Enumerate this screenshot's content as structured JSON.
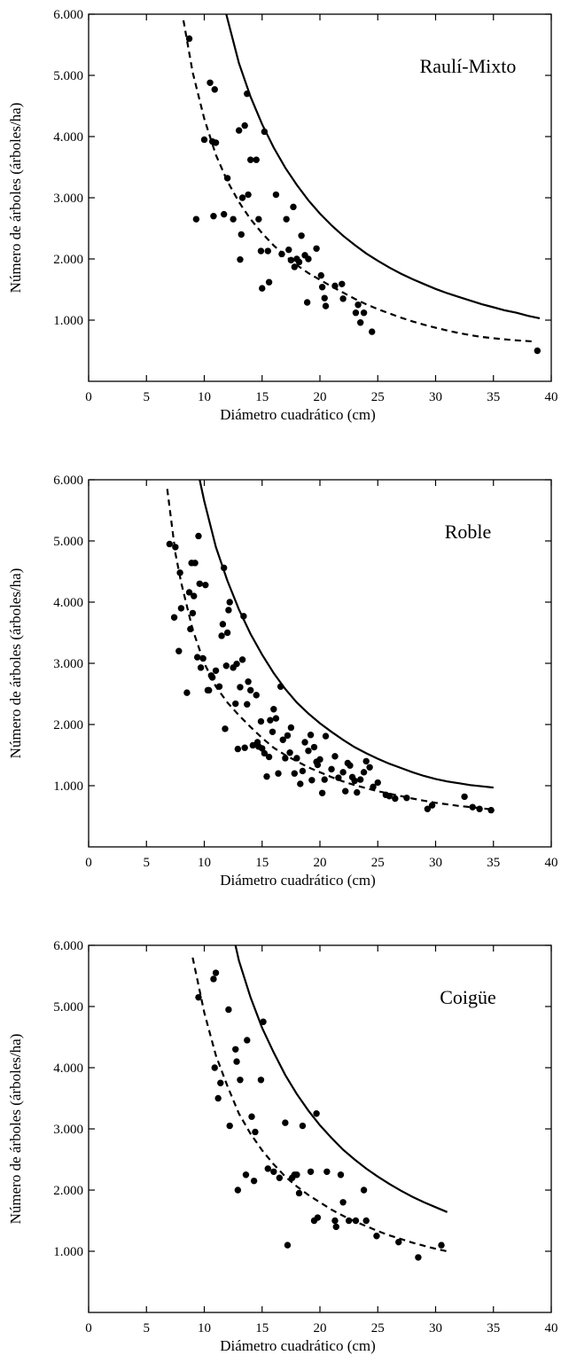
{
  "chart_data": [
    {
      "type": "scatter",
      "title": "Raulí-Mixto",
      "xlabel": "Diámetro cuadrático (cm)",
      "ylabel": "Número de árboles (árboles/ha)",
      "xlim": [
        0,
        40
      ],
      "ylim": [
        0,
        6000
      ],
      "xticks": [
        0,
        5,
        10,
        15,
        20,
        25,
        30,
        35,
        40
      ],
      "xtick_labels": [
        "0",
        "5",
        "10",
        "15",
        "20",
        "25",
        "30",
        "35",
        "40"
      ],
      "yticks": [
        1000,
        2000,
        3000,
        4000,
        5000,
        6000
      ],
      "ytick_labels": [
        "1.000",
        "2.000",
        "3.000",
        "4.000",
        "5.000",
        "6.000"
      ],
      "legend": "none",
      "grid": false,
      "series": [
        {
          "style": "points",
          "x": [
            8.7,
            9.3,
            10.0,
            10.5,
            10.7,
            10.8,
            10.9,
            11.0,
            11.7,
            12.0,
            12.5,
            13.0,
            13.1,
            13.2,
            13.3,
            13.5,
            13.7,
            13.8,
            14.0,
            14.5,
            14.7,
            14.9,
            15.0,
            15.2,
            15.5,
            15.6,
            16.2,
            16.7,
            17.1,
            17.3,
            17.5,
            17.7,
            17.8,
            18.0,
            18.2,
            18.4,
            18.7,
            18.9,
            19.0,
            19.7,
            20.1,
            20.2,
            20.4,
            20.5,
            21.3,
            21.9,
            22.0,
            23.1,
            23.3,
            23.5,
            23.8,
            24.5,
            38.8
          ],
          "y": [
            5600,
            2650,
            3950,
            4880,
            3920,
            2700,
            4770,
            3900,
            2730,
            3320,
            2650,
            4100,
            1990,
            2400,
            3000,
            4180,
            4700,
            3050,
            3620,
            3620,
            2650,
            2130,
            1520,
            4080,
            2130,
            1620,
            3050,
            2080,
            2650,
            2150,
            1980,
            2850,
            1870,
            2000,
            1950,
            2380,
            2060,
            1290,
            2000,
            2170,
            1730,
            1540,
            1360,
            1230,
            1560,
            1590,
            1350,
            1120,
            1250,
            960,
            1120,
            810,
            500
          ]
        },
        {
          "style": "dashed",
          "x": [
            8.2,
            9,
            10,
            11,
            12,
            13,
            14,
            15,
            16,
            17,
            18,
            19,
            20,
            21,
            22,
            23,
            24,
            25,
            26,
            27,
            28,
            29,
            30,
            31,
            32,
            33,
            34,
            35,
            36,
            37,
            38.5
          ],
          "y": [
            5900,
            5050,
            4290,
            3700,
            3270,
            2930,
            2650,
            2420,
            2220,
            2050,
            1900,
            1770,
            1660,
            1550,
            1450,
            1350,
            1260,
            1180,
            1110,
            1040,
            980,
            925,
            875,
            830,
            790,
            755,
            725,
            705,
            685,
            670,
            650
          ]
        },
        {
          "style": "solid",
          "x": [
            11.9,
            13,
            14,
            15,
            16,
            17,
            18,
            19,
            20,
            21,
            22,
            23,
            24,
            25,
            26,
            27,
            28,
            29,
            30,
            31,
            32,
            33,
            34,
            35,
            36,
            37,
            38,
            39
          ],
          "y": [
            6000,
            5200,
            4650,
            4200,
            3820,
            3490,
            3210,
            2960,
            2740,
            2550,
            2380,
            2230,
            2090,
            1970,
            1860,
            1760,
            1670,
            1590,
            1510,
            1440,
            1380,
            1320,
            1260,
            1210,
            1160,
            1120,
            1070,
            1030
          ]
        }
      ]
    },
    {
      "type": "scatter",
      "title": "Roble",
      "xlabel": "Diámetro cuadrático (cm)",
      "ylabel": "Número de árboles (árboles/ha)",
      "xlim": [
        0,
        40
      ],
      "ylim": [
        0,
        6000
      ],
      "xticks": [
        0,
        5,
        10,
        15,
        20,
        25,
        30,
        35,
        40
      ],
      "xtick_labels": [
        "0",
        "5",
        "10",
        "15",
        "20",
        "25",
        "30",
        "35",
        "40"
      ],
      "yticks": [
        1000,
        2000,
        3000,
        4000,
        5000,
        6000
      ],
      "ytick_labels": [
        "1.000",
        "2.000",
        "3.000",
        "4.000",
        "5.000",
        "6.000"
      ],
      "legend": "none",
      "grid": false,
      "series": [
        {
          "style": "points",
          "x": [
            7.0,
            7.4,
            7.5,
            7.8,
            7.9,
            8.0,
            8.5,
            8.7,
            8.8,
            8.9,
            9.0,
            9.1,
            9.2,
            9.4,
            9.5,
            9.6,
            9.7,
            9.9,
            10.1,
            10.3,
            10.4,
            10.6,
            10.7,
            11.0,
            11.3,
            11.5,
            11.6,
            11.7,
            11.8,
            11.9,
            12.0,
            12.1,
            12.2,
            12.5,
            12.7,
            12.8,
            12.9,
            13.1,
            13.3,
            13.4,
            13.5,
            13.7,
            13.8,
            14.0,
            14.2,
            14.5,
            14.6,
            14.7,
            14.9,
            15.0,
            15.2,
            15.4,
            15.6,
            15.7,
            15.9,
            16.0,
            16.2,
            16.4,
            16.6,
            16.8,
            17.0,
            17.2,
            17.4,
            17.5,
            17.8,
            18.0,
            18.3,
            18.5,
            18.7,
            19.0,
            19.2,
            19.3,
            19.5,
            19.7,
            19.8,
            20.0,
            20.2,
            20.4,
            20.5,
            21.0,
            21.3,
            21.6,
            22.0,
            22.2,
            22.4,
            22.6,
            22.8,
            23.0,
            23.2,
            23.5,
            23.8,
            24.0,
            24.3,
            24.6,
            25.0,
            25.7,
            26.0,
            26.5,
            27.5,
            29.3,
            29.7,
            32.5,
            33.2,
            33.8,
            34.8
          ],
          "y": [
            4950,
            3750,
            4900,
            3200,
            4480,
            3900,
            2520,
            4160,
            3560,
            4640,
            3820,
            4100,
            4640,
            3100,
            5080,
            4300,
            2930,
            3080,
            4280,
            2560,
            2560,
            2800,
            2770,
            2880,
            2620,
            3450,
            3640,
            4560,
            1930,
            2960,
            3500,
            3870,
            4000,
            2930,
            2340,
            2990,
            1600,
            2610,
            3060,
            3770,
            1620,
            2330,
            2700,
            2560,
            1660,
            2480,
            1710,
            1640,
            2050,
            1610,
            1530,
            1150,
            1470,
            2070,
            1880,
            2250,
            2100,
            1200,
            2620,
            1750,
            1450,
            1820,
            1540,
            1950,
            1200,
            1450,
            1030,
            1240,
            1710,
            1570,
            1830,
            1090,
            1630,
            1390,
            1340,
            1430,
            880,
            1100,
            1810,
            1270,
            1480,
            1130,
            1220,
            910,
            1370,
            1330,
            1140,
            1080,
            890,
            1100,
            1220,
            1400,
            1300,
            980,
            1050,
            850,
            830,
            790,
            800,
            620,
            680,
            820,
            650,
            620,
            600
          ]
        },
        {
          "style": "dashed",
          "x": [
            6.8,
            7.5,
            8,
            9,
            10,
            11,
            12,
            13,
            14,
            15,
            16,
            17,
            18,
            19,
            20,
            21,
            22,
            23,
            24,
            25,
            26,
            27,
            28,
            29,
            30,
            31,
            32,
            33,
            34,
            35
          ],
          "y": [
            5850,
            4800,
            4320,
            3550,
            3000,
            2620,
            2360,
            2150,
            1960,
            1780,
            1620,
            1500,
            1400,
            1300,
            1220,
            1140,
            1070,
            1010,
            960,
            910,
            870,
            830,
            790,
            755,
            720,
            695,
            670,
            650,
            630,
            610
          ]
        },
        {
          "style": "solid",
          "x": [
            9.6,
            10,
            11,
            12,
            13,
            14,
            15,
            16,
            17,
            18,
            19,
            20,
            21,
            22,
            23,
            24,
            25,
            26,
            27,
            28,
            29,
            30,
            31,
            32,
            33,
            34,
            35
          ],
          "y": [
            6000,
            5650,
            4900,
            4350,
            3880,
            3480,
            3140,
            2840,
            2580,
            2360,
            2180,
            2020,
            1880,
            1750,
            1630,
            1530,
            1440,
            1360,
            1290,
            1220,
            1160,
            1110,
            1070,
            1040,
            1010,
            990,
            970
          ]
        }
      ]
    },
    {
      "type": "scatter",
      "title": "Coigüe",
      "xlabel": "Diámetro cuadrático (cm)",
      "ylabel": "Número de árboles (árboles/ha)",
      "xlim": [
        0,
        40
      ],
      "ylim": [
        0,
        6000
      ],
      "xticks": [
        0,
        5,
        10,
        15,
        20,
        25,
        30,
        35,
        40
      ],
      "xtick_labels": [
        "0",
        "5",
        "10",
        "15",
        "20",
        "25",
        "30",
        "35",
        "40"
      ],
      "yticks": [
        1000,
        2000,
        3000,
        4000,
        5000,
        6000
      ],
      "ytick_labels": [
        "1.000",
        "2.000",
        "3.000",
        "4.000",
        "5.000",
        "6.000"
      ],
      "legend": "none",
      "grid": false,
      "series": [
        {
          "style": "points",
          "x": [
            9.5,
            10.8,
            10.9,
            11.0,
            11.2,
            11.4,
            12.1,
            12.2,
            12.7,
            12.8,
            12.9,
            13.1,
            13.6,
            13.7,
            14.1,
            14.3,
            14.4,
            14.9,
            15.1,
            15.5,
            16.0,
            16.5,
            17.0,
            17.2,
            17.6,
            17.8,
            18.0,
            18.2,
            18.5,
            19.2,
            19.5,
            19.7,
            19.8,
            20.6,
            21.3,
            21.4,
            21.8,
            22.0,
            22.5,
            23.1,
            23.8,
            24.0,
            24.9,
            26.8,
            28.5,
            30.5
          ],
          "y": [
            5150,
            5450,
            4000,
            5550,
            3500,
            3750,
            4950,
            3050,
            4300,
            4100,
            2000,
            3800,
            2250,
            4450,
            3200,
            2150,
            2950,
            3800,
            4750,
            2350,
            2300,
            2200,
            3100,
            1100,
            2200,
            2250,
            2250,
            1950,
            3050,
            2300,
            1500,
            3250,
            1550,
            2300,
            1500,
            1400,
            2250,
            1800,
            1500,
            1500,
            2000,
            1500,
            1250,
            1150,
            900,
            1100
          ]
        },
        {
          "style": "dashed",
          "x": [
            9,
            10,
            11,
            12,
            13,
            14,
            15,
            16,
            17,
            18,
            19,
            20,
            21,
            22,
            23,
            24,
            25,
            26,
            27,
            28,
            29,
            30,
            31
          ],
          "y": [
            5800,
            4900,
            4200,
            3700,
            3250,
            2920,
            2650,
            2420,
            2220,
            2060,
            1920,
            1800,
            1680,
            1580,
            1490,
            1410,
            1330,
            1260,
            1200,
            1140,
            1090,
            1040,
            1000
          ]
        },
        {
          "style": "solid",
          "x": [
            12.7,
            13,
            14,
            15,
            16,
            17,
            18,
            19,
            20,
            21,
            22,
            23,
            24,
            25,
            26,
            27,
            28,
            29,
            30,
            31
          ],
          "y": [
            6000,
            5750,
            5150,
            4650,
            4250,
            3880,
            3570,
            3300,
            3060,
            2850,
            2660,
            2500,
            2350,
            2220,
            2100,
            1990,
            1890,
            1800,
            1720,
            1640
          ]
        }
      ]
    }
  ]
}
